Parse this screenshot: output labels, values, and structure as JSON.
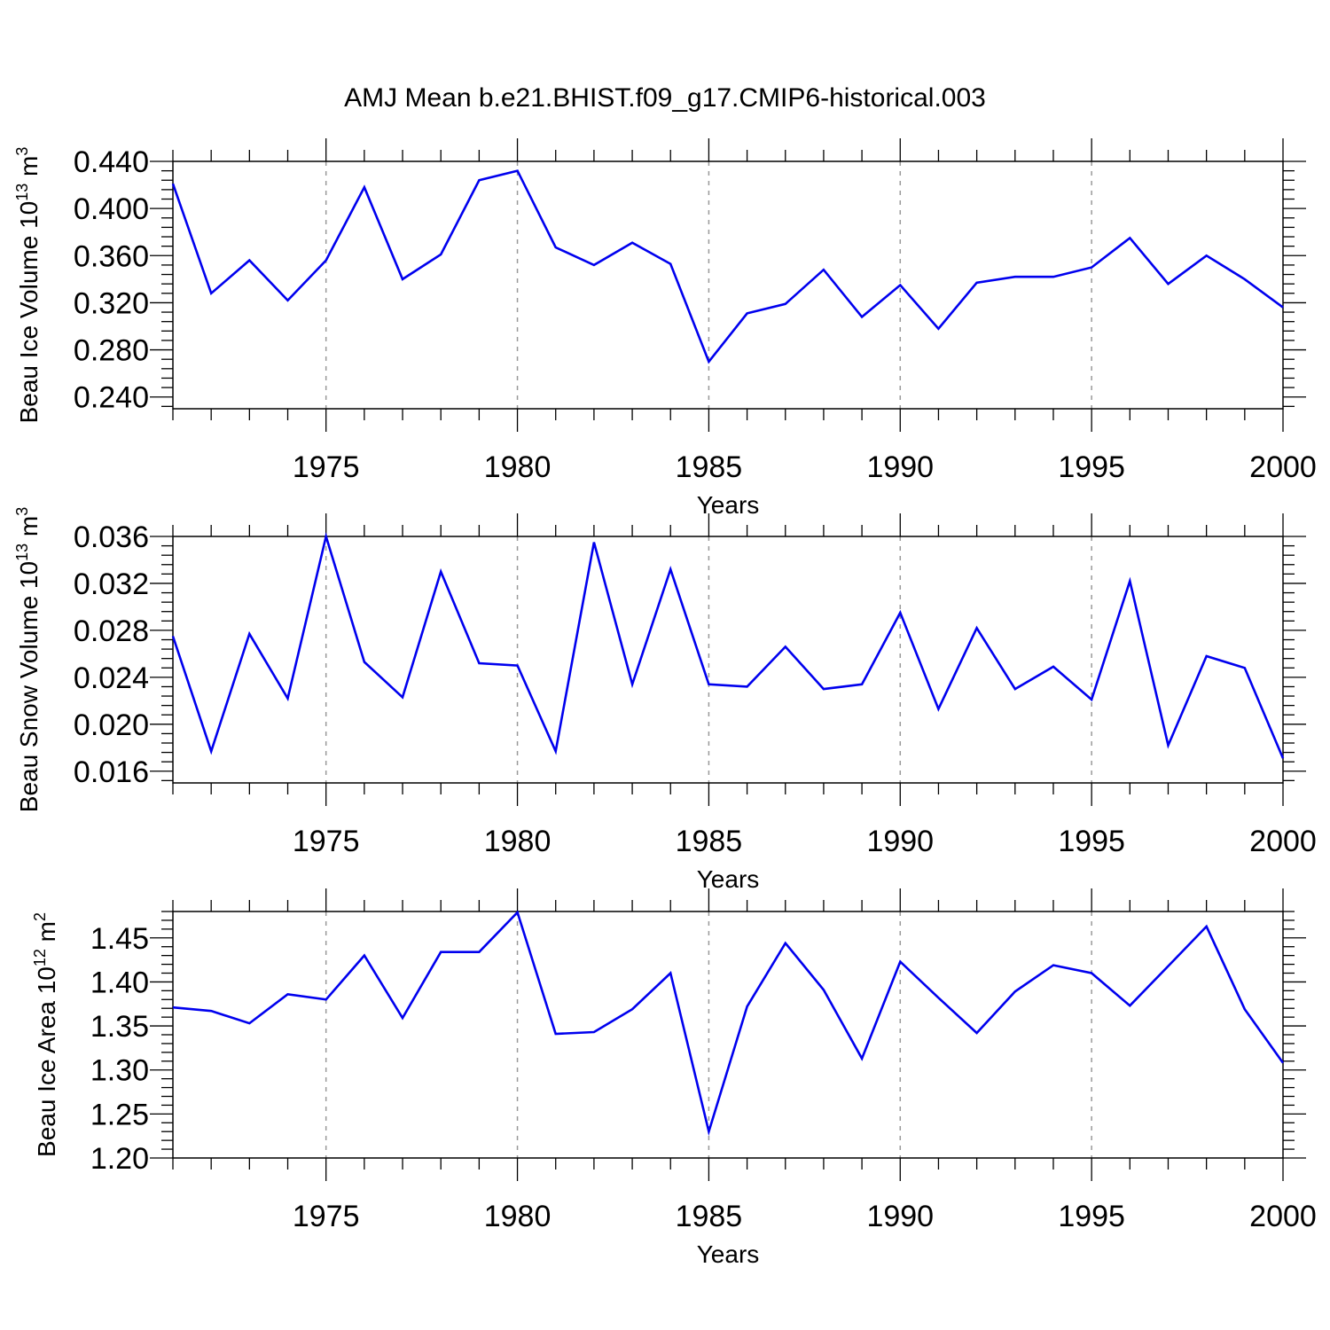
{
  "figure_title": "AMJ Mean b.e21.BHIST.f09_g17.CMIP6-historical.003",
  "line_color": "#0000ee",
  "chart_data": [
    {
      "type": "line",
      "ylabel": {
        "text": "Beau Ice Volume 10",
        "sup": "13",
        "unit": " m",
        "unit_sup": "3"
      },
      "xlabel": "Years",
      "xlim": [
        1971,
        2000
      ],
      "ylim": [
        0.23,
        0.44
      ],
      "xticks": [
        "1975",
        "1980",
        "1985",
        "1990",
        "1995",
        "2000"
      ],
      "yticks": [
        "0.240",
        "0.280",
        "0.320",
        "0.360",
        "0.400",
        "0.440"
      ],
      "grid": "dashed vertical at major x ticks",
      "x": [
        1971,
        1972,
        1973,
        1974,
        1975,
        1976,
        1977,
        1978,
        1979,
        1980,
        1981,
        1982,
        1983,
        1984,
        1985,
        1986,
        1987,
        1988,
        1989,
        1990,
        1991,
        1992,
        1993,
        1994,
        1995,
        1996,
        1997,
        1998,
        1999,
        2000
      ],
      "values": [
        0.421,
        0.328,
        0.356,
        0.322,
        0.356,
        0.418,
        0.34,
        0.361,
        0.424,
        0.432,
        0.367,
        0.352,
        0.371,
        0.353,
        0.27,
        0.311,
        0.319,
        0.348,
        0.308,
        0.335,
        0.298,
        0.337,
        0.342,
        0.342,
        0.35,
        0.375,
        0.336,
        0.36,
        0.34,
        0.316
      ]
    },
    {
      "type": "line",
      "ylabel": {
        "text": "Beau Snow Volume 10",
        "sup": "13",
        "unit": " m",
        "unit_sup": "3"
      },
      "xlabel": "Years",
      "xlim": [
        1971,
        2000
      ],
      "ylim": [
        0.015,
        0.036
      ],
      "xticks": [
        "1975",
        "1980",
        "1985",
        "1990",
        "1995",
        "2000"
      ],
      "yticks": [
        "0.016",
        "0.020",
        "0.024",
        "0.028",
        "0.032",
        "0.036"
      ],
      "grid": "dashed vertical at major x ticks",
      "x": [
        1971,
        1972,
        1973,
        1974,
        1975,
        1976,
        1977,
        1978,
        1979,
        1980,
        1981,
        1982,
        1983,
        1984,
        1985,
        1986,
        1987,
        1988,
        1989,
        1990,
        1991,
        1992,
        1993,
        1994,
        1995,
        1996,
        1997,
        1998,
        1999,
        2000
      ],
      "values": [
        0.0275,
        0.0177,
        0.0277,
        0.0222,
        0.036,
        0.0253,
        0.0223,
        0.033,
        0.0252,
        0.025,
        0.0177,
        0.0355,
        0.0234,
        0.0332,
        0.0234,
        0.0232,
        0.0266,
        0.023,
        0.0234,
        0.0295,
        0.0213,
        0.0282,
        0.023,
        0.0249,
        0.0221,
        0.0322,
        0.0182,
        0.0258,
        0.0248,
        0.0171
      ]
    },
    {
      "type": "line",
      "ylabel": {
        "text": "Beau Ice Area 10",
        "sup": "12",
        "unit": " m",
        "unit_sup": "2"
      },
      "xlabel": "Years",
      "xlim": [
        1971,
        2000
      ],
      "ylim": [
        1.2,
        1.48
      ],
      "xticks": [
        "1975",
        "1980",
        "1985",
        "1990",
        "1995",
        "2000"
      ],
      "yticks": [
        "1.20",
        "1.25",
        "1.30",
        "1.35",
        "1.40",
        "1.45"
      ],
      "grid": "dashed vertical at major x ticks",
      "x": [
        1971,
        1972,
        1973,
        1974,
        1975,
        1976,
        1977,
        1978,
        1979,
        1980,
        1981,
        1982,
        1983,
        1984,
        1985,
        1986,
        1987,
        1988,
        1989,
        1990,
        1991,
        1992,
        1993,
        1994,
        1995,
        1996,
        1997,
        1998,
        1999,
        2000
      ],
      "values": [
        1.371,
        1.367,
        1.353,
        1.386,
        1.38,
        1.43,
        1.359,
        1.434,
        1.434,
        1.479,
        1.341,
        1.343,
        1.369,
        1.41,
        1.23,
        1.372,
        1.444,
        1.391,
        1.313,
        1.423,
        1.382,
        1.342,
        1.389,
        1.419,
        1.41,
        1.373,
        1.418,
        1.463,
        1.369,
        1.308
      ]
    }
  ]
}
